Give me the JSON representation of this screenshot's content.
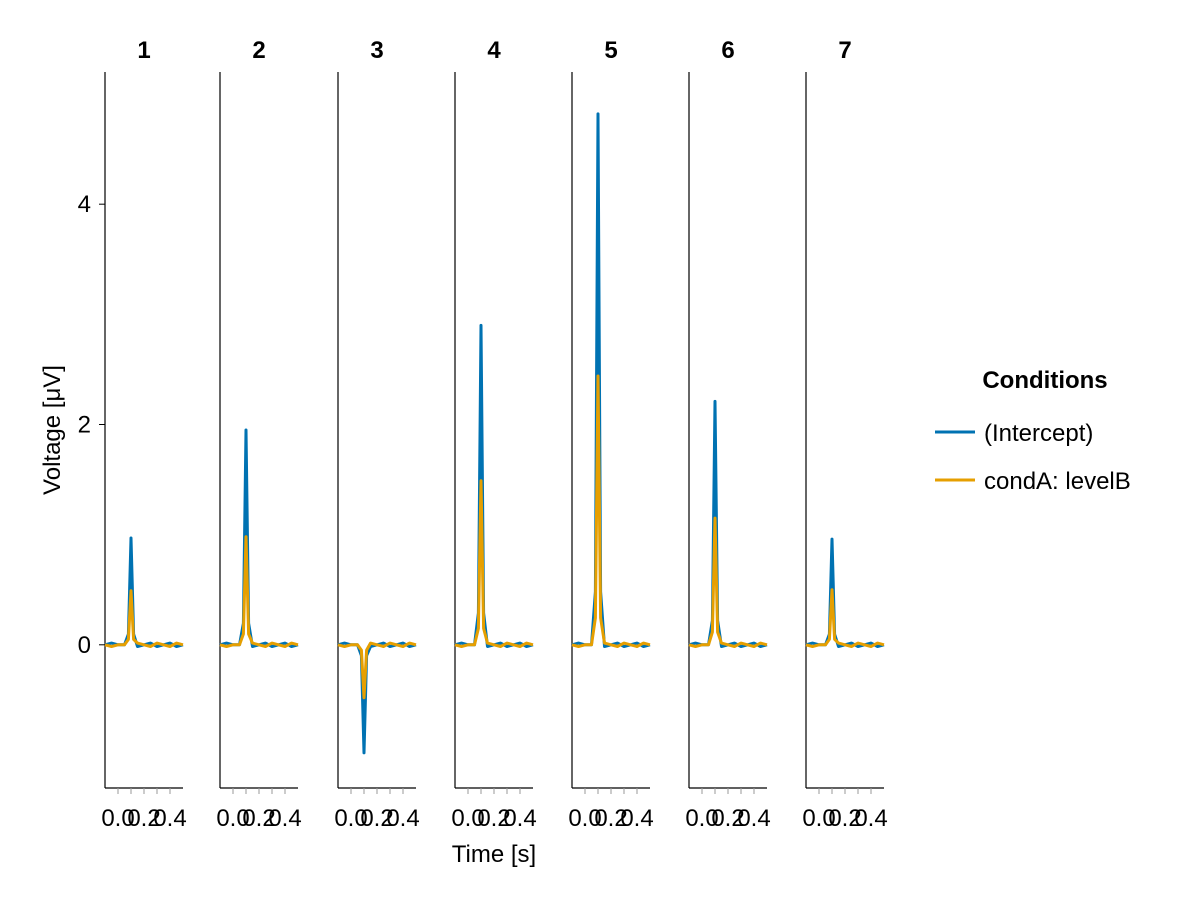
{
  "chart_data": {
    "type": "line",
    "xlabel": "Time [s]",
    "ylabel": "Voltage [μV]",
    "ylim": [
      -1.3,
      5.2
    ],
    "xlim": [
      -0.1,
      0.5
    ],
    "y_ticks": [
      0,
      2,
      4
    ],
    "x_tick_label_text": [
      "0.0",
      "0.2",
      "0.4"
    ],
    "grid": false,
    "legend": {
      "title": "Conditions",
      "position": "right"
    },
    "panels": [
      {
        "title": "1",
        "peak": {
          "(Intercept)": 0.97,
          "condA: levelB": 0.49
        }
      },
      {
        "title": "2",
        "peak": {
          "(Intercept)": 1.95,
          "condA: levelB": 0.98
        }
      },
      {
        "title": "3",
        "peak": {
          "(Intercept)": -0.98,
          "condA: levelB": -0.48
        }
      },
      {
        "title": "4",
        "peak": {
          "(Intercept)": 2.9,
          "condA: levelB": 1.49
        }
      },
      {
        "title": "5",
        "peak": {
          "(Intercept)": 4.82,
          "condA: levelB": 2.44
        }
      },
      {
        "title": "6",
        "peak": {
          "(Intercept)": 2.21,
          "condA: levelB": 1.15
        }
      },
      {
        "title": "7",
        "peak": {
          "(Intercept)": 0.96,
          "condA: levelB": 0.5
        }
      }
    ],
    "series": [
      {
        "name": "(Intercept)",
        "color": "#0072b2"
      },
      {
        "name": "condA: levelB",
        "color": "#e69f00"
      }
    ],
    "waveform": {
      "x": [
        -0.1,
        -0.05,
        0.0,
        0.05,
        0.08,
        0.1,
        0.12,
        0.15,
        0.2,
        0.25,
        0.3,
        0.35,
        0.4,
        0.45,
        0.5
      ],
      "shape": [
        0.0,
        0.01,
        0.0,
        0.0,
        0.1,
        1.0,
        0.1,
        -0.01,
        0.0,
        0.01,
        -0.01,
        0.0,
        0.01,
        -0.01,
        0.0
      ]
    }
  }
}
